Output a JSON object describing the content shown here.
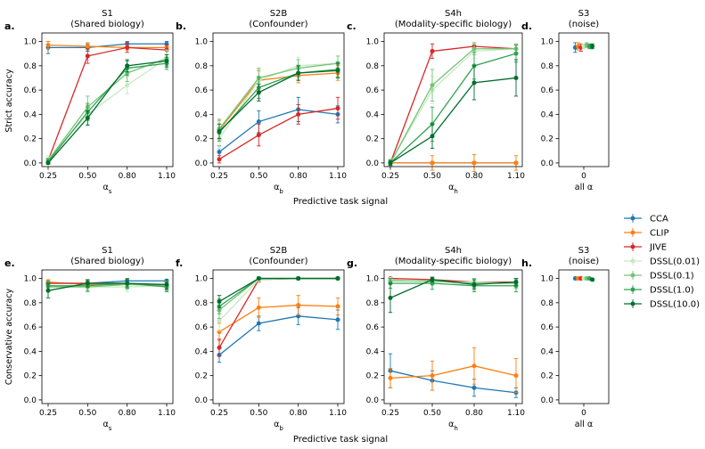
{
  "series_styles": [
    {
      "name": "CCA",
      "color": "#1f77b4"
    },
    {
      "name": "CLIP",
      "color": "#ff7f0e"
    },
    {
      "name": "JIVE",
      "color": "#d62728"
    },
    {
      "name": "DSSL(0.01)",
      "color": "#c7e9c0"
    },
    {
      "name": "DSSL(0.1)",
      "color": "#74c476"
    },
    {
      "name": "DSSL(1.0)",
      "color": "#31a354"
    },
    {
      "name": "DSSL(10.0)",
      "color": "#006d2c"
    }
  ],
  "shared_xlabel": [
    "Predictive task signal",
    "Predictive task signal"
  ],
  "row_ylabels": [
    "Strict accuracy",
    "Conservative accuracy"
  ],
  "chart_data": [
    {
      "id": "a",
      "type": "line",
      "row": 0,
      "col": 0,
      "panel_letter": "a.",
      "title": "S1",
      "subtitle": "(Shared biology)",
      "xlabel": "α",
      "xlabel_sub": "s",
      "ylabel": "Strict accuracy",
      "categories": [
        "0.25",
        "0.50",
        "0.80",
        "1.10"
      ],
      "ylim": [
        -0.03,
        1.07
      ],
      "yticks": [
        "0.0",
        "0.2",
        "0.4",
        "0.6",
        "0.8",
        "1.0"
      ],
      "series": [
        {
          "name": "CCA",
          "values": [
            0.95,
            0.95,
            0.98,
            0.98
          ],
          "err": [
            0.05,
            0.03,
            0.02,
            0.02
          ]
        },
        {
          "name": "CLIP",
          "values": [
            0.97,
            0.96,
            0.95,
            0.95
          ],
          "err": [
            0.03,
            0.03,
            0.02,
            0.02
          ]
        },
        {
          "name": "JIVE",
          "values": [
            0.02,
            0.88,
            0.95,
            0.93
          ],
          "err": [
            0.02,
            0.06,
            0.04,
            0.04
          ]
        },
        {
          "name": "DSSL(0.01)",
          "values": [
            0.03,
            0.4,
            0.64,
            0.86
          ],
          "err": [
            0.03,
            0.08,
            0.07,
            0.07
          ]
        },
        {
          "name": "DSSL(0.1)",
          "values": [
            0.02,
            0.46,
            0.74,
            0.86
          ],
          "err": [
            0.02,
            0.09,
            0.07,
            0.06
          ]
        },
        {
          "name": "DSSL(1.0)",
          "values": [
            0.01,
            0.42,
            0.78,
            0.82
          ],
          "err": [
            0.02,
            0.07,
            0.06,
            0.05
          ]
        },
        {
          "name": "DSSL(10.0)",
          "values": [
            0.0,
            0.37,
            0.8,
            0.84
          ],
          "err": [
            0.01,
            0.06,
            0.05,
            0.05
          ]
        }
      ]
    },
    {
      "id": "b",
      "type": "line",
      "row": 0,
      "col": 1,
      "panel_letter": "b.",
      "title": "S2B",
      "subtitle": "(Confounder)",
      "xlabel": "α",
      "xlabel_sub": "b",
      "ylabel": "",
      "categories": [
        "0.25",
        "0.50",
        "0.80",
        "1.10"
      ],
      "ylim": [
        -0.03,
        1.07
      ],
      "yticks": [
        "0.0",
        "0.2",
        "0.4",
        "0.6",
        "0.8",
        "1.0"
      ],
      "series": [
        {
          "name": "CCA",
          "values": [
            0.09,
            0.34,
            0.44,
            0.4
          ],
          "err": [
            0.05,
            0.09,
            0.1,
            0.07
          ]
        },
        {
          "name": "CLIP",
          "values": [
            0.27,
            0.68,
            0.72,
            0.74
          ],
          "err": [
            0.08,
            0.08,
            0.06,
            0.06
          ]
        },
        {
          "name": "JIVE",
          "values": [
            0.03,
            0.23,
            0.4,
            0.45
          ],
          "err": [
            0.03,
            0.09,
            0.08,
            0.09
          ]
        },
        {
          "name": "DSSL(0.01)",
          "values": [
            0.2,
            0.68,
            0.8,
            0.82
          ],
          "err": [
            0.08,
            0.09,
            0.07,
            0.06
          ]
        },
        {
          "name": "DSSL(0.1)",
          "values": [
            0.28,
            0.7,
            0.78,
            0.82
          ],
          "err": [
            0.08,
            0.08,
            0.07,
            0.06
          ]
        },
        {
          "name": "DSSL(1.0)",
          "values": [
            0.25,
            0.62,
            0.74,
            0.77
          ],
          "err": [
            0.07,
            0.09,
            0.06,
            0.06
          ]
        },
        {
          "name": "DSSL(10.0)",
          "values": [
            0.26,
            0.58,
            0.74,
            0.76
          ],
          "err": [
            0.06,
            0.07,
            0.06,
            0.06
          ]
        }
      ]
    },
    {
      "id": "c",
      "type": "line",
      "row": 0,
      "col": 2,
      "panel_letter": "c.",
      "title": "S4h",
      "subtitle": "(Modality-specific biology)",
      "xlabel": "α",
      "xlabel_sub": "h",
      "ylabel": "",
      "categories": [
        "0.25",
        "0.50",
        "0.80",
        "1.10"
      ],
      "ylim": [
        -0.03,
        1.07
      ],
      "yticks": [
        "0.0",
        "0.2",
        "0.4",
        "0.6",
        "0.8",
        "1.0"
      ],
      "series": [
        {
          "name": "CCA",
          "values": [
            0.0,
            0.0,
            0.0,
            0.0
          ],
          "err": [
            0.01,
            0.01,
            0.01,
            0.01
          ]
        },
        {
          "name": "CLIP",
          "values": [
            0.0,
            0.0,
            0.0,
            0.0
          ],
          "err": [
            0.02,
            0.06,
            0.07,
            0.06
          ]
        },
        {
          "name": "JIVE",
          "values": [
            0.0,
            0.92,
            0.96,
            0.94
          ],
          "err": [
            0.02,
            0.06,
            0.03,
            0.03
          ]
        },
        {
          "name": "DSSL(0.01)",
          "values": [
            0.0,
            0.6,
            0.92,
            0.94
          ],
          "err": [
            0.03,
            0.11,
            0.06,
            0.04
          ]
        },
        {
          "name": "DSSL(0.1)",
          "values": [
            0.0,
            0.64,
            0.94,
            0.94
          ],
          "err": [
            0.03,
            0.13,
            0.05,
            0.04
          ]
        },
        {
          "name": "DSSL(1.0)",
          "values": [
            0.0,
            0.32,
            0.8,
            0.9
          ],
          "err": [
            0.02,
            0.14,
            0.11,
            0.07
          ]
        },
        {
          "name": "DSSL(10.0)",
          "values": [
            0.0,
            0.22,
            0.66,
            0.7
          ],
          "err": [
            0.02,
            0.1,
            0.14,
            0.15
          ]
        }
      ]
    },
    {
      "id": "d",
      "type": "scatter",
      "row": 0,
      "col": 3,
      "panel_letter": "d.",
      "title": "S3",
      "subtitle": "(noise)",
      "xlabel": "all α",
      "xlabel_sub": "",
      "ylabel": "",
      "categories": [
        "0"
      ],
      "ylim": [
        -0.03,
        1.07
      ],
      "yticks": [
        "0.0",
        "0.2",
        "0.4",
        "0.6",
        "0.8",
        "1.0"
      ],
      "series": [
        {
          "name": "CCA",
          "values": [
            0.95
          ],
          "err": [
            0.04
          ]
        },
        {
          "name": "CLIP",
          "values": [
            0.96
          ],
          "err": [
            0.03
          ]
        },
        {
          "name": "JIVE",
          "values": [
            0.95
          ],
          "err": [
            0.03
          ]
        },
        {
          "name": "DSSL(0.01)",
          "values": [
            0.96
          ],
          "err": [
            0.02
          ]
        },
        {
          "name": "DSSL(0.1)",
          "values": [
            0.97
          ],
          "err": [
            0.02
          ]
        },
        {
          "name": "DSSL(1.0)",
          "values": [
            0.96
          ],
          "err": [
            0.02
          ]
        },
        {
          "name": "DSSL(10.0)",
          "values": [
            0.96
          ],
          "err": [
            0.02
          ]
        }
      ]
    },
    {
      "id": "e",
      "type": "line",
      "row": 1,
      "col": 0,
      "panel_letter": "e.",
      "title": "S1",
      "subtitle": "(Shared biology)",
      "xlabel": "α",
      "xlabel_sub": "s",
      "ylabel": "Conservative accuracy",
      "categories": [
        "0.25",
        "0.50",
        "0.80",
        "1.10"
      ],
      "ylim": [
        -0.03,
        1.07
      ],
      "yticks": [
        "0.0",
        "0.2",
        "0.4",
        "0.6",
        "0.8",
        "1.0"
      ],
      "series": [
        {
          "name": "CCA",
          "values": [
            0.96,
            0.96,
            0.98,
            0.98
          ],
          "err": [
            0.02,
            0.02,
            0.02,
            0.01
          ]
        },
        {
          "name": "CLIP",
          "values": [
            0.97,
            0.95,
            0.95,
            0.95
          ],
          "err": [
            0.02,
            0.03,
            0.02,
            0.02
          ]
        },
        {
          "name": "JIVE",
          "values": [
            0.96,
            0.96,
            0.96,
            0.94
          ],
          "err": [
            0.02,
            0.03,
            0.03,
            0.03
          ]
        },
        {
          "name": "DSSL(0.01)",
          "values": [
            0.94,
            0.93,
            0.93,
            0.94
          ],
          "err": [
            0.04,
            0.04,
            0.04,
            0.05
          ]
        },
        {
          "name": "DSSL(0.1)",
          "values": [
            0.93,
            0.93,
            0.95,
            0.94
          ],
          "err": [
            0.04,
            0.04,
            0.04,
            0.04
          ]
        },
        {
          "name": "DSSL(1.0)",
          "values": [
            0.94,
            0.94,
            0.96,
            0.93
          ],
          "err": [
            0.04,
            0.04,
            0.04,
            0.04
          ]
        },
        {
          "name": "DSSL(10.0)",
          "values": [
            0.9,
            0.96,
            0.96,
            0.95
          ],
          "err": [
            0.06,
            0.03,
            0.03,
            0.04
          ]
        }
      ]
    },
    {
      "id": "f",
      "type": "line",
      "row": 1,
      "col": 1,
      "panel_letter": "f.",
      "title": "S2B",
      "subtitle": "(Confounder)",
      "xlabel": "α",
      "xlabel_sub": "b",
      "ylabel": "",
      "categories": [
        "0.25",
        "0.50",
        "0.80",
        "1.10"
      ],
      "ylim": [
        -0.03,
        1.07
      ],
      "yticks": [
        "0.0",
        "0.2",
        "0.4",
        "0.6",
        "0.8",
        "1.0"
      ],
      "series": [
        {
          "name": "CCA",
          "values": [
            0.37,
            0.63,
            0.69,
            0.66
          ],
          "err": [
            0.06,
            0.06,
            0.07,
            0.08
          ]
        },
        {
          "name": "CLIP",
          "values": [
            0.56,
            0.76,
            0.78,
            0.77
          ],
          "err": [
            0.07,
            0.08,
            0.08,
            0.07
          ]
        },
        {
          "name": "JIVE",
          "values": [
            0.43,
            0.99,
            1.0,
            1.0
          ],
          "err": [
            0.07,
            0.02,
            0.01,
            0.01
          ]
        },
        {
          "name": "DSSL(0.01)",
          "values": [
            0.65,
            0.99,
            1.0,
            1.0
          ],
          "err": [
            0.08,
            0.01,
            0.01,
            0.01
          ]
        },
        {
          "name": "DSSL(0.1)",
          "values": [
            0.74,
            1.0,
            1.0,
            1.0
          ],
          "err": [
            0.07,
            0.01,
            0.01,
            0.01
          ]
        },
        {
          "name": "DSSL(1.0)",
          "values": [
            0.77,
            1.0,
            1.0,
            1.0
          ],
          "err": [
            0.06,
            0.01,
            0.01,
            0.01
          ]
        },
        {
          "name": "DSSL(10.0)",
          "values": [
            0.81,
            1.0,
            1.0,
            1.0
          ],
          "err": [
            0.05,
            0.01,
            0.01,
            0.01
          ]
        }
      ]
    },
    {
      "id": "g",
      "type": "line",
      "row": 1,
      "col": 2,
      "panel_letter": "g.",
      "title": "S4h",
      "subtitle": "(Modality-specific biology)",
      "xlabel": "α",
      "xlabel_sub": "h",
      "ylabel": "",
      "categories": [
        "0.25",
        "0.50",
        "0.80",
        "1.10"
      ],
      "ylim": [
        -0.03,
        1.07
      ],
      "yticks": [
        "0.0",
        "0.2",
        "0.4",
        "0.6",
        "0.8",
        "1.0"
      ],
      "series": [
        {
          "name": "CCA",
          "values": [
            0.24,
            0.16,
            0.1,
            0.06
          ],
          "err": [
            0.14,
            0.08,
            0.07,
            0.04
          ]
        },
        {
          "name": "CLIP",
          "values": [
            0.18,
            0.2,
            0.28,
            0.2
          ],
          "err": [
            0.08,
            0.12,
            0.15,
            0.14
          ]
        },
        {
          "name": "JIVE",
          "values": [
            1.0,
            0.99,
            0.97,
            0.97
          ],
          "err": [
            0.01,
            0.02,
            0.03,
            0.03
          ]
        },
        {
          "name": "DSSL(0.01)",
          "values": [
            0.99,
            0.97,
            0.97,
            0.96
          ],
          "err": [
            0.02,
            0.03,
            0.03,
            0.04
          ]
        },
        {
          "name": "DSSL(0.1)",
          "values": [
            0.98,
            0.98,
            0.96,
            0.96
          ],
          "err": [
            0.02,
            0.03,
            0.04,
            0.04
          ]
        },
        {
          "name": "DSSL(1.0)",
          "values": [
            0.96,
            0.96,
            0.94,
            0.94
          ],
          "err": [
            0.04,
            0.05,
            0.05,
            0.05
          ]
        },
        {
          "name": "DSSL(10.0)",
          "values": [
            0.84,
            0.99,
            0.95,
            0.97
          ],
          "err": [
            0.12,
            0.02,
            0.04,
            0.03
          ]
        }
      ]
    },
    {
      "id": "h",
      "type": "scatter",
      "row": 1,
      "col": 3,
      "panel_letter": "h.",
      "title": "S3",
      "subtitle": "(noise)",
      "xlabel": "all α",
      "xlabel_sub": "",
      "ylabel": "",
      "categories": [
        "0"
      ],
      "ylim": [
        -0.03,
        1.07
      ],
      "yticks": [
        "0.0",
        "0.2",
        "0.4",
        "0.6",
        "0.8",
        "1.0"
      ],
      "series": [
        {
          "name": "CCA",
          "values": [
            1.0
          ],
          "err": [
            0.005
          ]
        },
        {
          "name": "CLIP",
          "values": [
            1.0
          ],
          "err": [
            0.005
          ]
        },
        {
          "name": "JIVE",
          "values": [
            1.0
          ],
          "err": [
            0.005
          ]
        },
        {
          "name": "DSSL(0.01)",
          "values": [
            1.0
          ],
          "err": [
            0.005
          ]
        },
        {
          "name": "DSSL(0.1)",
          "values": [
            1.0
          ],
          "err": [
            0.005
          ]
        },
        {
          "name": "DSSL(1.0)",
          "values": [
            1.0
          ],
          "err": [
            0.005
          ]
        },
        {
          "name": "DSSL(10.0)",
          "values": [
            0.99
          ],
          "err": [
            0.01
          ]
        }
      ]
    }
  ]
}
